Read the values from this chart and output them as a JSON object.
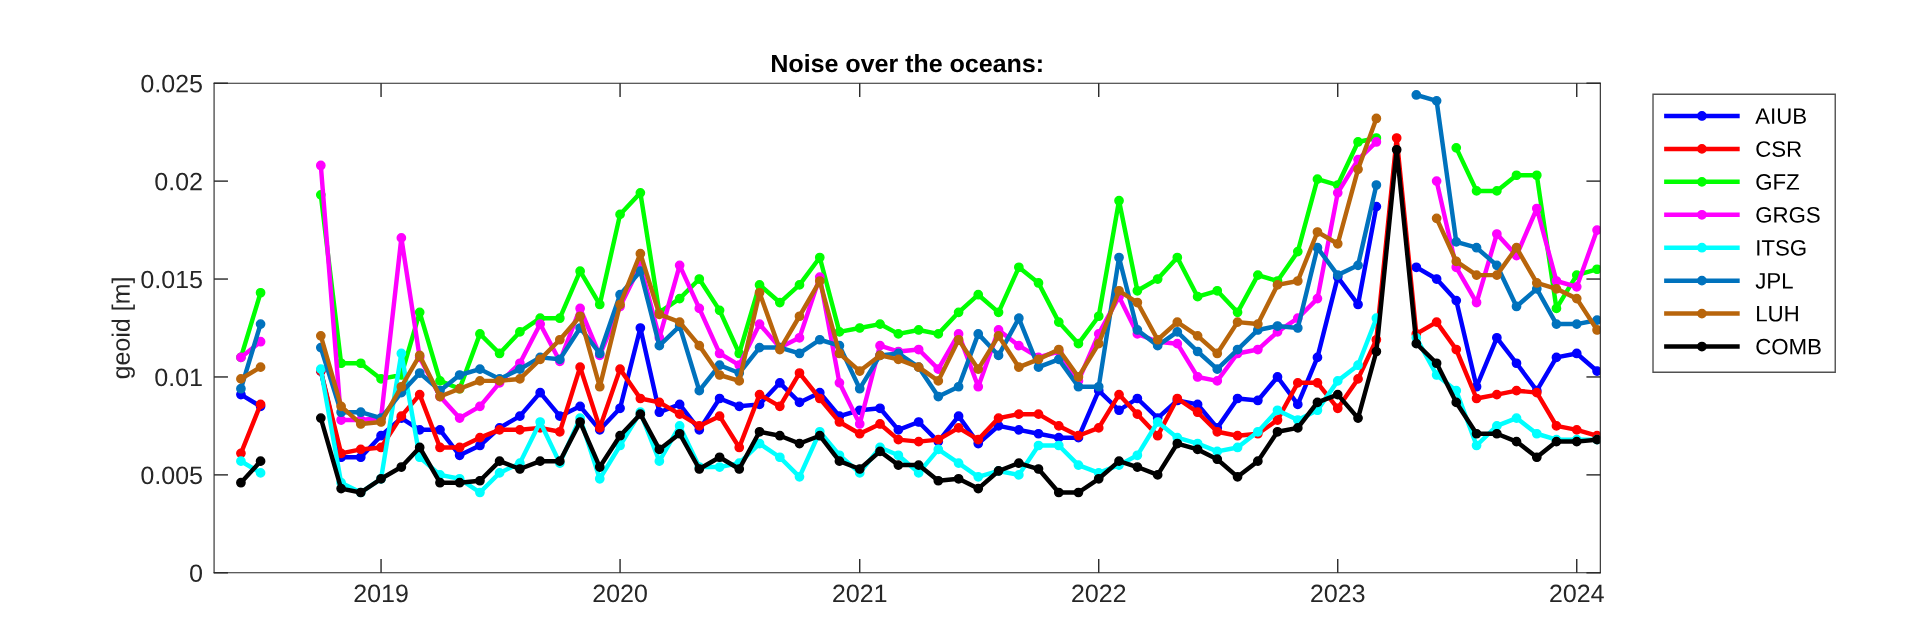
{
  "chart_data": {
    "type": "line",
    "title": "Noise over the oceans:",
    "ylabel": "geoid [m]",
    "x": [
      "2018-06",
      "2018-07",
      "2018-08",
      "2018-09",
      "2018-10",
      "2018-11",
      "2018-12",
      "2019-01",
      "2019-02",
      "2019-03",
      "2019-04",
      "2019-05",
      "2019-06",
      "2019-07",
      "2019-08",
      "2019-09",
      "2019-10",
      "2019-11",
      "2019-12",
      "2020-01",
      "2020-02",
      "2020-03",
      "2020-04",
      "2020-05",
      "2020-06",
      "2020-07",
      "2020-08",
      "2020-09",
      "2020-10",
      "2020-11",
      "2020-12",
      "2021-01",
      "2021-02",
      "2021-03",
      "2021-04",
      "2021-05",
      "2021-06",
      "2021-07",
      "2021-08",
      "2021-09",
      "2021-10",
      "2021-11",
      "2021-12",
      "2022-01",
      "2022-02",
      "2022-03",
      "2022-04",
      "2022-05",
      "2022-06",
      "2022-07",
      "2022-08",
      "2022-09",
      "2022-10",
      "2022-11",
      "2022-12",
      "2023-01",
      "2023-02",
      "2023-03",
      "2023-04",
      "2023-05",
      "2023-06",
      "2023-07",
      "2023-08",
      "2023-09",
      "2023-10",
      "2023-11",
      "2023-12",
      "2024-01",
      "2024-02"
    ],
    "xlim": [
      "2018-04-21",
      "2024-02-06"
    ],
    "xticks": [
      {
        "value": "2019",
        "label": "2019"
      },
      {
        "value": "2020",
        "label": "2020"
      },
      {
        "value": "2021",
        "label": "2021"
      },
      {
        "value": "2022",
        "label": "2022"
      },
      {
        "value": "2023",
        "label": "2023"
      },
      {
        "value": "2024",
        "label": "2024"
      }
    ],
    "ylim": [
      0,
      0.025
    ],
    "yticks": [
      0,
      0.005,
      0.01,
      0.015,
      0.02,
      0.025
    ],
    "grid": false,
    "legend": "top right",
    "marker": "circle",
    "line_style": "solid",
    "series": [
      {
        "name": "AIUB",
        "color": "#0000ff",
        "values": [
          0.0091,
          0.0085,
          null,
          null,
          0.0103,
          0.0059,
          0.0059,
          0.007,
          0.0079,
          0.0073,
          0.0073,
          0.006,
          0.0065,
          0.0074,
          0.008,
          0.0092,
          0.008,
          0.0085,
          0.0073,
          0.0084,
          0.0125,
          0.0082,
          0.0086,
          0.0073,
          0.0089,
          0.0085,
          0.0086,
          0.0097,
          0.0087,
          0.0092,
          0.008,
          0.0083,
          0.0084,
          0.0073,
          0.0077,
          0.0067,
          0.008,
          0.0066,
          0.0075,
          0.0073,
          0.0071,
          0.0069,
          0.0069,
          0.0093,
          0.0083,
          0.0089,
          0.0079,
          0.0088,
          0.0086,
          0.0074,
          0.0089,
          0.0088,
          0.01,
          0.0086,
          0.011,
          0.0151,
          0.0137,
          0.0187,
          null,
          0.0156,
          0.015,
          0.0139,
          0.0095,
          0.012,
          0.0107,
          0.0093,
          0.011,
          0.0112,
          0.0103
        ]
      },
      {
        "name": "CSR",
        "color": "#ff0000",
        "values": [
          0.0061,
          0.0086,
          null,
          null,
          0.0103,
          0.0061,
          0.0063,
          0.0064,
          0.008,
          0.0091,
          0.0064,
          0.0064,
          0.0069,
          0.0073,
          0.0073,
          0.0074,
          0.0072,
          0.0105,
          0.0074,
          0.0104,
          0.0089,
          0.0087,
          0.0081,
          0.0075,
          0.008,
          0.0064,
          0.0091,
          0.0085,
          0.0102,
          0.0089,
          0.0077,
          0.0071,
          0.0076,
          0.0068,
          0.0067,
          0.0068,
          0.0074,
          0.0068,
          0.0079,
          0.0081,
          0.0081,
          0.0075,
          0.007,
          0.0074,
          0.0091,
          0.0081,
          0.007,
          0.0089,
          0.0082,
          0.0072,
          0.007,
          0.0071,
          0.0078,
          0.0097,
          0.0097,
          0.0084,
          0.0099,
          0.0119,
          0.0222,
          0.0122,
          0.0128,
          0.0114,
          0.0089,
          0.0091,
          0.0093,
          0.0092,
          0.0075,
          0.0073,
          0.007
        ]
      },
      {
        "name": "GFZ",
        "color": "#00ff00",
        "values": [
          0.011,
          0.0143,
          null,
          null,
          0.0193,
          0.0107,
          0.0107,
          0.0099,
          0.0101,
          0.0133,
          0.0098,
          0.0094,
          0.0122,
          0.0112,
          0.0123,
          0.013,
          0.013,
          0.0154,
          0.0137,
          0.0183,
          0.0194,
          0.0133,
          0.014,
          0.015,
          0.0134,
          0.0112,
          0.0147,
          0.0138,
          0.0147,
          0.0161,
          0.0123,
          0.0125,
          0.0127,
          0.0122,
          0.0124,
          0.0122,
          0.0133,
          0.0142,
          0.0133,
          0.0156,
          0.0148,
          0.0128,
          0.0117,
          0.0131,
          0.019,
          0.0144,
          0.015,
          0.0161,
          0.0141,
          0.0144,
          0.0133,
          0.0152,
          0.0149,
          0.0164,
          0.0201,
          0.0198,
          0.022,
          0.0222,
          null,
          null,
          null,
          0.0217,
          0.0195,
          0.0195,
          0.0203,
          0.0203,
          0.0135,
          0.0152,
          0.0155
        ]
      },
      {
        "name": "GRGS",
        "color": "#ff00ff",
        "values": [
          0.011,
          0.0118,
          null,
          null,
          0.0208,
          0.0078,
          0.0078,
          0.0079,
          0.0171,
          0.011,
          0.009,
          0.0079,
          0.0085,
          0.0097,
          0.0107,
          0.0127,
          0.0108,
          0.0135,
          0.0111,
          0.0136,
          0.0157,
          0.012,
          0.0157,
          0.0135,
          0.0112,
          0.0106,
          0.0127,
          0.0115,
          0.012,
          0.0151,
          0.0097,
          0.0076,
          0.0116,
          0.0113,
          0.0114,
          0.0104,
          0.0122,
          0.0095,
          0.0124,
          0.0116,
          0.011,
          0.0113,
          0.0098,
          0.0122,
          0.0141,
          0.0122,
          0.0118,
          0.0117,
          0.01,
          0.0098,
          0.0112,
          0.0114,
          0.0123,
          0.013,
          0.014,
          0.0194,
          0.0211,
          0.022,
          null,
          null,
          0.02,
          0.0156,
          0.0138,
          0.0173,
          0.0162,
          0.0186,
          0.0149,
          0.0146,
          0.0175
        ]
      },
      {
        "name": "ITSG",
        "color": "#00ffff",
        "values": [
          0.0057,
          0.0051,
          null,
          null,
          0.0104,
          0.0046,
          0.0041,
          0.0048,
          0.0112,
          0.0059,
          0.005,
          0.0048,
          0.0041,
          0.0051,
          0.0056,
          0.0077,
          0.0056,
          0.0079,
          0.0048,
          0.0065,
          0.0082,
          0.0057,
          0.0075,
          0.0054,
          0.0054,
          0.0056,
          0.0066,
          0.0059,
          0.0049,
          0.0072,
          0.006,
          0.0051,
          0.0064,
          0.006,
          0.0051,
          0.0063,
          0.0056,
          0.0049,
          0.0052,
          0.005,
          0.0065,
          0.0065,
          0.0055,
          0.0051,
          0.0055,
          0.006,
          0.0077,
          0.0069,
          0.0066,
          0.0062,
          0.0064,
          0.0072,
          0.0083,
          0.0078,
          0.0083,
          0.0098,
          0.0106,
          0.013,
          null,
          0.012,
          0.0101,
          0.0093,
          0.0065,
          0.0075,
          0.0079,
          0.0071,
          0.0068,
          0.0068,
          0.0068
        ]
      },
      {
        "name": "JPL",
        "color": "#0072bd",
        "values": [
          0.0094,
          0.0127,
          null,
          null,
          0.0115,
          0.0082,
          0.0082,
          0.0079,
          0.0092,
          0.0102,
          0.0093,
          0.0101,
          0.0104,
          0.0099,
          0.0104,
          0.011,
          0.0109,
          0.0125,
          0.0112,
          0.0142,
          0.0154,
          0.0116,
          0.0126,
          0.0093,
          0.0106,
          0.0102,
          0.0115,
          0.0115,
          0.0112,
          0.0119,
          0.0116,
          0.0094,
          0.0111,
          0.0112,
          0.0105,
          0.009,
          0.0095,
          0.0122,
          0.0111,
          0.013,
          0.0105,
          0.0109,
          0.0095,
          0.0095,
          0.0161,
          0.0124,
          0.0116,
          0.0123,
          0.0113,
          0.0104,
          0.0114,
          0.0124,
          0.0126,
          0.0125,
          0.0166,
          0.0152,
          0.0157,
          0.0198,
          null,
          0.0244,
          0.0241,
          0.0169,
          0.0166,
          0.0157,
          0.0136,
          0.0145,
          0.0127,
          0.0127,
          0.0129
        ]
      },
      {
        "name": "LUH",
        "color": "#b8650b",
        "values": [
          0.0099,
          0.0105,
          null,
          null,
          0.0121,
          0.0085,
          0.0076,
          0.0077,
          0.0095,
          0.0111,
          0.009,
          0.0094,
          0.0098,
          0.0098,
          0.0099,
          0.0109,
          0.0119,
          0.0131,
          0.0095,
          0.0137,
          0.0163,
          0.0132,
          0.0128,
          0.0116,
          0.0101,
          0.0098,
          0.0143,
          0.0114,
          0.0131,
          0.0149,
          0.0112,
          0.0103,
          0.0111,
          0.0109,
          0.0105,
          0.0098,
          0.0119,
          0.0104,
          0.0121,
          0.0105,
          0.0109,
          0.0114,
          0.01,
          0.0117,
          0.0144,
          0.0138,
          0.0119,
          0.0128,
          0.0121,
          0.0112,
          0.0128,
          0.0127,
          0.0147,
          0.0149,
          0.0174,
          0.0168,
          0.0206,
          0.0232,
          null,
          null,
          0.0181,
          0.0159,
          0.0152,
          0.0152,
          0.0166,
          0.0148,
          0.0145,
          0.014,
          0.0124
        ]
      },
      {
        "name": "COMB",
        "color": "#000000",
        "values": [
          0.0046,
          0.0057,
          null,
          null,
          0.0079,
          0.0043,
          0.0041,
          0.0048,
          0.0054,
          0.0064,
          0.0046,
          0.0046,
          0.0047,
          0.0057,
          0.0053,
          0.0057,
          0.0057,
          0.0077,
          0.0054,
          0.007,
          0.0081,
          0.0063,
          0.0071,
          0.0053,
          0.0059,
          0.0053,
          0.0072,
          0.007,
          0.0066,
          0.007,
          0.0057,
          0.0053,
          0.0062,
          0.0055,
          0.0055,
          0.0047,
          0.0048,
          0.0043,
          0.0052,
          0.0056,
          0.0053,
          0.0041,
          0.0041,
          0.0048,
          0.0057,
          0.0054,
          0.005,
          0.0066,
          0.0063,
          0.0058,
          0.0049,
          0.0057,
          0.0072,
          0.0074,
          0.0087,
          0.0091,
          0.0079,
          0.0113,
          0.0216,
          0.0117,
          0.0107,
          0.0087,
          0.0071,
          0.0071,
          0.0067,
          0.0059,
          0.0067,
          0.0067,
          0.0068
        ]
      }
    ]
  }
}
